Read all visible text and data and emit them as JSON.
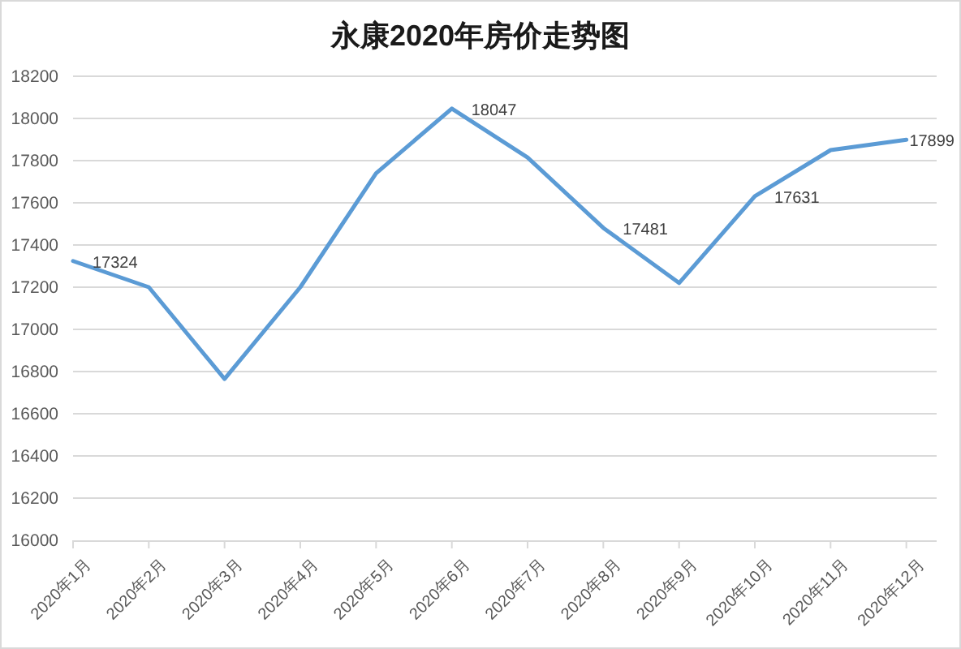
{
  "chart_data": {
    "type": "line",
    "title": "永康2020年房价走势图",
    "categories": [
      "2020年1月",
      "2020年2月",
      "2020年3月",
      "2020年4月",
      "2020年5月",
      "2020年6月",
      "2020年7月",
      "2020年8月",
      "2020年9月",
      "2020年10月",
      "2020年11月",
      "2020年12月"
    ],
    "series": [
      {
        "color": "#5b9bd5",
        "values": [
          17324,
          17200,
          16765,
          17200,
          17740,
          18047,
          17815,
          17481,
          17220,
          17631,
          17850,
          17899
        ],
        "value_labels": [
          "17324",
          null,
          null,
          null,
          null,
          "18047",
          null,
          "17481",
          null,
          "17631",
          null,
          "17899"
        ]
      }
    ],
    "ylim": [
      16000,
      18200
    ],
    "yticks": [
      16000,
      16200,
      16400,
      16600,
      16800,
      17000,
      17200,
      17400,
      17600,
      17800,
      18000,
      18200
    ],
    "grid": "y",
    "line_style": "solid"
  }
}
